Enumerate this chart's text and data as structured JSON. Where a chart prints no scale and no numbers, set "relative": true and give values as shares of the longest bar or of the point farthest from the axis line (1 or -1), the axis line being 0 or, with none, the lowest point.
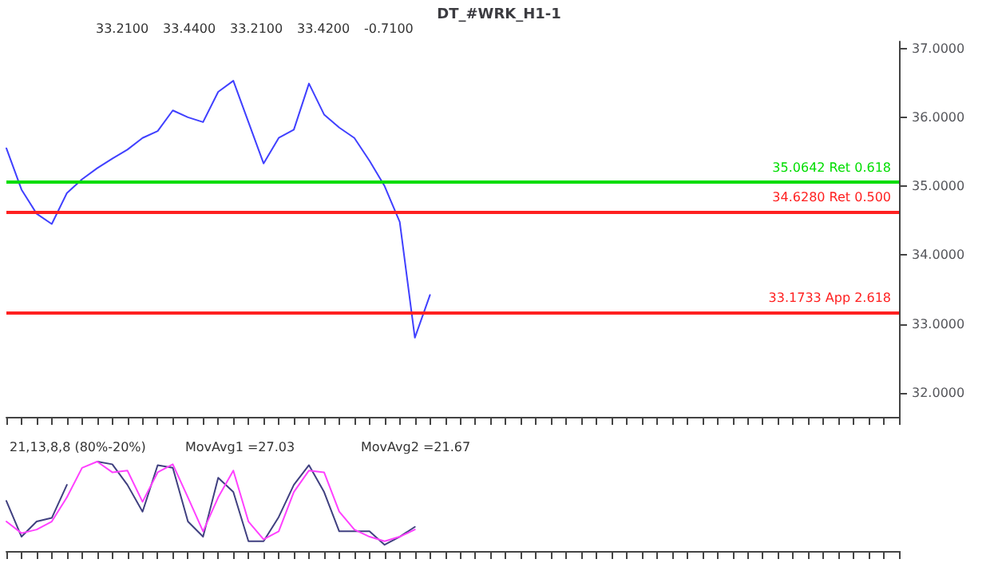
{
  "chart_data": [
    {
      "type": "line",
      "title": "DT_#WRK_H1-1",
      "annotations": [
        "33.2100",
        "33.4400",
        "33.2100",
        "33.4200",
        "-0.7100"
      ],
      "categories": [
        null,
        null,
        null,
        null,
        null,
        null,
        null,
        null,
        null,
        null,
        null,
        null,
        null,
        null,
        null,
        null,
        null,
        null,
        null,
        null,
        null,
        null,
        null,
        null,
        null,
        null,
        null,
        null,
        null,
        null,
        null,
        null,
        null,
        null,
        null,
        null,
        null,
        null,
        null,
        null,
        null,
        null,
        null,
        null,
        null,
        null,
        null,
        null,
        null,
        null,
        null,
        null,
        null,
        null,
        null,
        null,
        null,
        null,
        null,
        null
      ],
      "series": [
        {
          "color": "#4040ff",
          "values": [
            35.55,
            34.95,
            34.6,
            34.45,
            34.9,
            35.1,
            35.26,
            35.4,
            35.53,
            35.7,
            35.8,
            36.1,
            36.0,
            35.93,
            36.37,
            36.53,
            35.93,
            35.33,
            35.7,
            35.82,
            36.49,
            36.04,
            35.85,
            35.7,
            35.37,
            35.0,
            34.48,
            32.8,
            33.42,
            null,
            null,
            null,
            null,
            null,
            null,
            null,
            null,
            null,
            null,
            null,
            null,
            null,
            null,
            null,
            null,
            null,
            null,
            null,
            null,
            null,
            null,
            null,
            null,
            null,
            null,
            null,
            null,
            null,
            null,
            null
          ]
        }
      ],
      "ylim": [
        31.65,
        37.1
      ],
      "yticks": [
        {
          "value": 32,
          "label": "32.0000"
        },
        {
          "value": 33,
          "label": "33.0000"
        },
        {
          "value": 34,
          "label": "34.0000"
        },
        {
          "value": 35,
          "label": "35.0000"
        },
        {
          "value": 36,
          "label": "36.0000"
        },
        {
          "value": 37,
          "label": "37.0000"
        }
      ],
      "tick_labels": "y",
      "grid": false,
      "ref_lines": [
        {
          "axis": "y",
          "value": 35.0642,
          "label": "35.0642 Ret 0.618",
          "color": "#00dd00"
        },
        {
          "axis": "y",
          "value": 34.628,
          "label": "34.6280 Ret 0.500",
          "color": "#ff2020"
        },
        {
          "axis": "y",
          "value": 33.1733,
          "label": "33.1733 App 2.618",
          "color": "#ff2020"
        }
      ]
    },
    {
      "type": "line",
      "annotations": [
        "21,13,8,8 (80%-20%)",
        "MovAvg1 =27.03",
        "MovAvg2 =21.67"
      ],
      "categories": [
        null,
        null,
        null,
        null,
        null,
        null,
        null,
        null,
        null,
        null,
        null,
        null,
        null,
        null,
        null,
        null,
        null,
        null,
        null,
        null,
        null,
        null,
        null,
        null,
        null,
        null,
        null,
        null,
        null,
        null,
        null,
        null,
        null,
        null,
        null,
        null,
        null,
        null,
        null,
        null,
        null,
        null,
        null,
        null,
        null,
        null,
        null,
        null,
        null,
        null,
        null,
        null,
        null,
        null,
        null,
        null,
        null,
        null,
        null,
        null
      ],
      "series": [
        {
          "color": "#404080",
          "values": [
            0.56,
            0.16,
            0.33,
            0.37,
            0.74,
            null,
            1,
            0.97,
            0.74,
            0.44,
            0.96,
            0.93,
            0.33,
            0.16,
            0.82,
            0.66,
            0.11,
            0.11,
            0.38,
            0.74,
            0.96,
            0.66,
            0.22,
            0.22,
            0.22,
            0.07,
            0.16,
            0.27,
            null,
            null,
            null,
            null,
            null,
            null,
            null,
            null,
            null,
            null,
            null,
            null,
            null,
            null,
            null,
            null,
            null,
            null,
            null,
            null,
            null,
            null,
            null,
            null,
            null,
            null,
            null,
            null,
            null,
            null,
            null,
            null
          ]
        },
        {
          "color": "#ff40ff",
          "values": [
            0.33,
            0.2,
            0.24,
            0.33,
            0.6,
            0.93,
            1,
            0.88,
            0.9,
            0.55,
            0.88,
            0.97,
            0.6,
            0.22,
            0.6,
            0.9,
            0.33,
            0.13,
            0.22,
            0.66,
            0.9,
            0.88,
            0.44,
            0.24,
            0.16,
            0.11,
            0.16,
            0.24,
            null,
            null,
            null,
            null,
            null,
            null,
            null,
            null,
            null,
            null,
            null,
            null,
            null,
            null,
            null,
            null,
            null,
            null,
            null,
            null,
            null,
            null,
            null,
            null,
            null,
            null,
            null,
            null,
            null,
            null,
            null,
            null
          ]
        }
      ],
      "relative": true,
      "grid": false
    }
  ]
}
